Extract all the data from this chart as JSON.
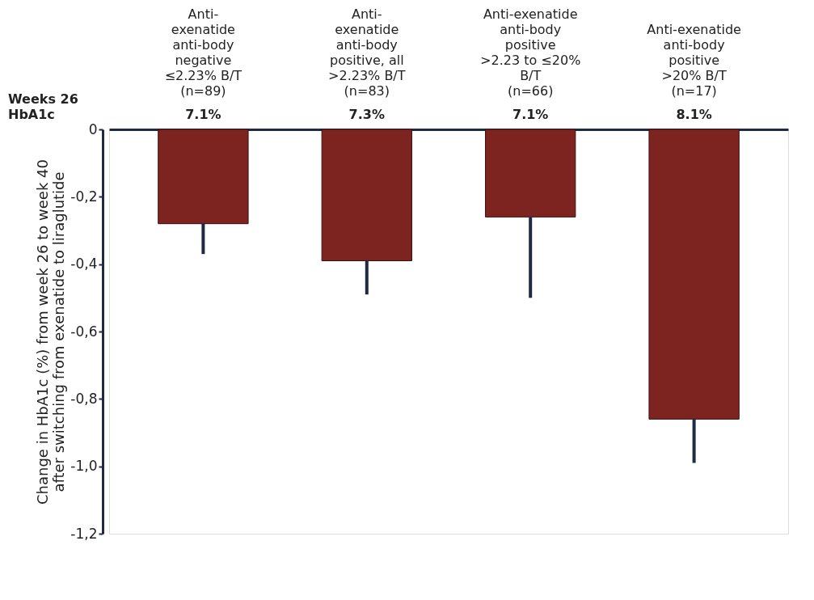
{
  "chart_data": {
    "type": "bar",
    "ylabel": "Change in HbA1c (%) from week 26 to week 40\nafter switching from exenatide to liraglutide",
    "categories": [
      "Anti-\nexenatide\nanti-body\nnegative\n≤2.23% B/T\n(n=89)",
      "Anti-\nexenatide\nanti-body\npositive, all\n>2.23% B/T\n(n=83)",
      "Anti-exenatide\nanti-body\npositive\n>2.23 to ≤20%\nB/T\n(n=66)",
      "Anti-exenatide\nanti-body\npositive\n>20% B/T\n(n=17)"
    ],
    "values": [
      -0.28,
      -0.39,
      -0.26,
      -0.86
    ],
    "errors": [
      [
        -0.37,
        -0.28
      ],
      [
        -0.49,
        -0.39
      ],
      [
        -0.5,
        -0.26
      ],
      [
        -0.99,
        -0.86
      ]
    ],
    "color": "#7d2421",
    "ylim": [
      -1.2,
      0
    ],
    "yticks": [
      0,
      {
        "value": -0.2,
        "label": "-0,2"
      },
      {
        "value": -0.4,
        "label": "-0,4"
      },
      {
        "value": -0.6,
        "label": "-0,6"
      },
      {
        "value": -0.8,
        "label": "-0,8"
      },
      {
        "value": -1.0,
        "label": "-1,0"
      },
      {
        "value": -1.2,
        "label": "-1,2"
      }
    ],
    "annotations": [
      "Weeks 26\nHbA1c",
      "7.1%",
      "7.3%",
      "7.1%",
      "8.1%"
    ],
    "grid": false
  }
}
